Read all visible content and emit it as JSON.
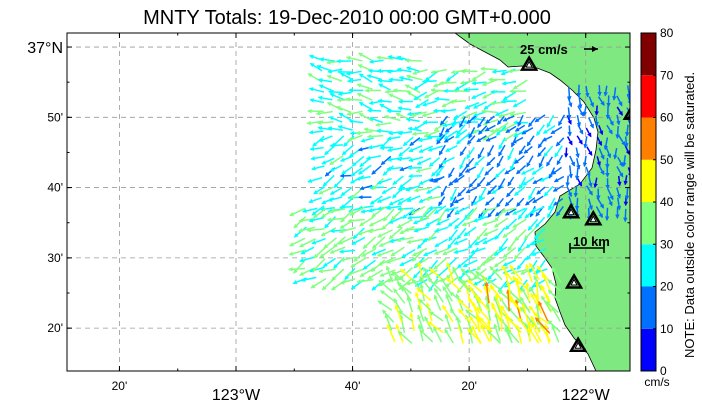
{
  "title": "MNTY Totals: 19-Dec-2010 00:00 GMT+0.000",
  "lon_labels": [
    {
      "lon": -123.3333,
      "text": "20'",
      "big": false
    },
    {
      "lon": -123.0,
      "text": "123°W",
      "big": true
    },
    {
      "lon": -122.6667,
      "text": "40'",
      "big": false
    },
    {
      "lon": -122.3333,
      "text": "20'",
      "big": false
    },
    {
      "lon": -122.0,
      "text": "122°W",
      "big": true
    }
  ],
  "lat_labels": [
    {
      "lat": 37.0,
      "text": "37°N",
      "big": true
    },
    {
      "lat": 36.8333,
      "text": "50'",
      "big": false
    },
    {
      "lat": 36.6667,
      "text": "40'",
      "big": false
    },
    {
      "lat": 36.5,
      "text": "30'",
      "big": false
    },
    {
      "lat": 36.3333,
      "text": "20'",
      "big": false
    }
  ],
  "reference_vector": {
    "label": "25 cm/s",
    "speed": 25
  },
  "scale_bar": {
    "label": "10 km"
  },
  "colorbar": {
    "ticks": [
      "0",
      "10",
      "20",
      "30",
      "40",
      "50",
      "60",
      "70",
      "80"
    ],
    "colors": [
      "#0000ff",
      "#0070ff",
      "#00ffff",
      "#80ff80",
      "#ffff00",
      "#ff8000",
      "#ff0000",
      "#800000"
    ],
    "unit": "cm/s",
    "note": "NOTE: Data outside color range will be saturated."
  },
  "colors": {
    "land": "#80e880",
    "background": "#ffffff",
    "grid": "#999999"
  },
  "stations": [
    {
      "lon": -122.1617,
      "lat": 36.9583
    },
    {
      "lon": -121.8683,
      "lat": 36.8417
    },
    {
      "lon": -122.0417,
      "lat": 36.6083
    },
    {
      "lon": -121.9783,
      "lat": 36.5917
    },
    {
      "lon": -122.0333,
      "lat": 36.4417
    },
    {
      "lon": -122.0217,
      "lat": 36.2917
    }
  ],
  "chart_data": {
    "type": "vector_field",
    "flow_regions": [
      {
        "lon": [
          -122.75,
          -122.45
        ],
        "lat": [
          36.8,
          36.97
        ],
        "u": -15,
        "v": 3,
        "speed": 28
      },
      {
        "lon": [
          -122.45,
          -122.15
        ],
        "lat": [
          36.8,
          36.95
        ],
        "u": -12,
        "v": -3,
        "speed": 30
      },
      {
        "lon": [
          -122.75,
          -122.4
        ],
        "lat": [
          36.62,
          36.8
        ],
        "u": -14,
        "v": -6,
        "speed": 25
      },
      {
        "lon": [
          -122.4,
          -122.05
        ],
        "lat": [
          36.62,
          36.85
        ],
        "u": -10,
        "v": -10,
        "speed": 18
      },
      {
        "lon": [
          -122.05,
          -121.88
        ],
        "lat": [
          36.62,
          36.93
        ],
        "u": 2,
        "v": -10,
        "speed": 14
      },
      {
        "lon": [
          -122.8,
          -122.45
        ],
        "lat": [
          36.45,
          36.62
        ],
        "u": -16,
        "v": -8,
        "speed": 32
      },
      {
        "lon": [
          -122.45,
          -122.1
        ],
        "lat": [
          36.45,
          36.62
        ],
        "u": -14,
        "v": -10,
        "speed": 28
      },
      {
        "lon": [
          -122.55,
          -122.05
        ],
        "lat": [
          36.3,
          36.45
        ],
        "u": -8,
        "v": 12,
        "speed": 38
      },
      {
        "lon": [
          -122.3,
          -122.1
        ],
        "lat": [
          36.3,
          36.4
        ],
        "u": -6,
        "v": 14,
        "speed": 45
      }
    ],
    "xlabel": "",
    "ylabel": "",
    "xlim": [
      -123.4833,
      -121.8733
    ],
    "ylim": [
      36.2317,
      37.0333
    ]
  }
}
